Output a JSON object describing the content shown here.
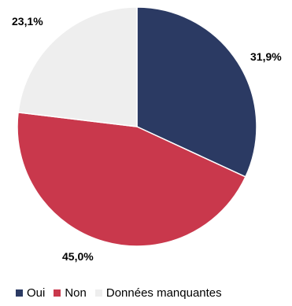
{
  "chart_data": {
    "type": "pie",
    "title": "",
    "start_angle_deg": 0,
    "direction": "clockwise",
    "legend_position": "bottom",
    "slices": [
      {
        "label": "Oui",
        "value": 31.9,
        "display": "31,9%",
        "color": "#2b3a63"
      },
      {
        "label": "Non",
        "value": 45.0,
        "display": "45,0%",
        "color": "#c9384c"
      },
      {
        "label": "Données manquantes",
        "value": 23.1,
        "display": "23,1%",
        "color": "#eeeeee"
      }
    ]
  }
}
